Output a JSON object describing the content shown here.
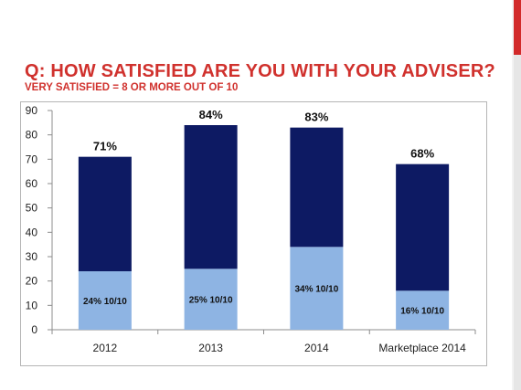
{
  "slide": {
    "title": "Q: HOW SATISFIED ARE YOU WITH YOUR ADVISER?",
    "subtitle": "VERY SATISFIED = 8 OR MORE OUT OF 10",
    "accent_color": "#d22a2a"
  },
  "chart_data": {
    "type": "bar",
    "stacked": true,
    "categories": [
      "2012",
      "2013",
      "2014",
      "Marketplace 2014"
    ],
    "series": [
      {
        "values": [
          24,
          25,
          34,
          16
        ],
        "color": "#8eb4e3",
        "labels": [
          "24% 10/10",
          "25% 10/10",
          "34% 10/10",
          "16% 10/10"
        ]
      },
      {
        "values": [
          47,
          59,
          49,
          52
        ],
        "color": "#0d1a63"
      }
    ],
    "totals": [
      71,
      84,
      83,
      68
    ],
    "total_labels": [
      "71%",
      "84%",
      "83%",
      "68%"
    ],
    "yticks": [
      0,
      10,
      20,
      30,
      40,
      50,
      60,
      70,
      80,
      90
    ],
    "ylim": [
      0,
      90
    ],
    "grid": false,
    "legend": "none"
  }
}
